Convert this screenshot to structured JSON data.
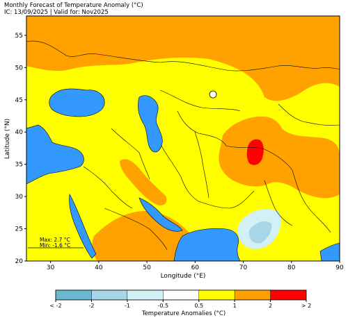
{
  "header": {
    "title": "Monthly Forecast of Temperature Anomaly (°C)",
    "subtitle": "IC: 13/09/2025 | Valid for: Nov2025"
  },
  "axes": {
    "xlabel": "Longitude (°E)",
    "ylabel": "Latitude (°N)",
    "x_ticks": [
      "30",
      "40",
      "50",
      "60",
      "70",
      "80",
      "90"
    ],
    "y_ticks": [
      "20",
      "25",
      "30",
      "35",
      "40",
      "45",
      "50",
      "55"
    ],
    "xlim": [
      25,
      90
    ],
    "ylim": [
      20,
      58
    ]
  },
  "stats": {
    "max": "Max: 2.7 °C",
    "min": "Min: -1.6 °C"
  },
  "colorbar": {
    "title": "Temperature Anomalies (°C)",
    "labels": [
      "< -2",
      "-2",
      "-1",
      "-0.5",
      "0.5",
      "1",
      "2",
      "> 2"
    ],
    "colors": [
      "#6bb8d0",
      "#a8d6e6",
      "#d2f1f7",
      "#ffffff",
      "#ffff00",
      "#ffa200",
      "#ff0000"
    ]
  },
  "map_colors": {
    "sea": "#3399ff",
    "land_neutral": "#ffffff",
    "anomaly_0_5_to_1": "#ffff00",
    "anomaly_1_to_2": "#ffa200",
    "anomaly_above_2": "#ff0000",
    "anomaly_neg": "#d2f1f7"
  }
}
